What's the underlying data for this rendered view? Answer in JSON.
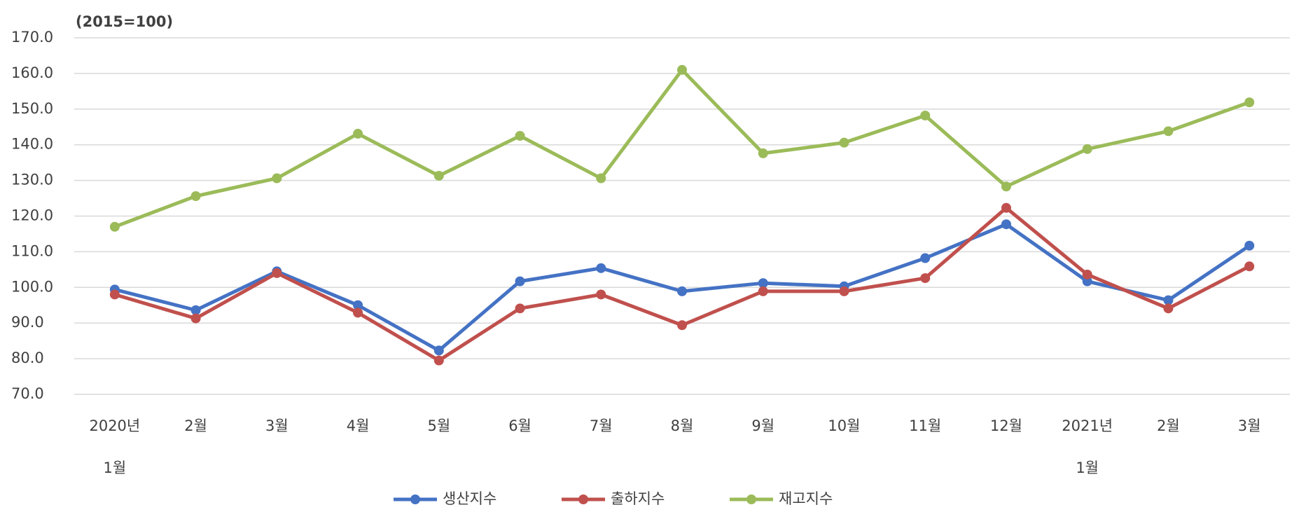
{
  "chart_data": {
    "type": "line",
    "y_label": "(2015=100)",
    "categories": [
      "2020년\n1월",
      "2월",
      "3월",
      "4월",
      "5월",
      "6월",
      "7월",
      "8월",
      "9월",
      "10월",
      "11월",
      "12월",
      "2021년\n1월",
      "2월",
      "3월"
    ],
    "series": [
      {
        "name": "생산지수",
        "color": "#4472c4",
        "values": [
          99.4,
          93.6,
          104.5,
          95.0,
          82.3,
          101.7,
          105.4,
          98.9,
          101.2,
          100.3,
          108.2,
          117.7,
          101.7,
          96.4,
          111.7
        ]
      },
      {
        "name": "출하지수",
        "color": "#c0504d",
        "values": [
          98.0,
          91.3,
          104.0,
          92.9,
          79.5,
          94.1,
          98.0,
          89.4,
          98.9,
          98.9,
          102.6,
          122.3,
          103.6,
          94.1,
          105.9
        ]
      },
      {
        "name": "재고지수",
        "color": "#9bbb59",
        "values": [
          117.0,
          125.6,
          130.6,
          143.1,
          131.3,
          142.5,
          130.6,
          161.0,
          137.6,
          140.6,
          148.2,
          128.3,
          138.8,
          143.8,
          151.9
        ]
      }
    ],
    "ylim": [
      70,
      170
    ],
    "yticks": [
      {
        "value": 70,
        "label": "70.0"
      },
      {
        "value": 80,
        "label": "80.0"
      },
      {
        "value": 90,
        "label": "90.0"
      },
      {
        "value": 100,
        "label": "100.0"
      },
      {
        "value": 110,
        "label": "110.0"
      },
      {
        "value": 120,
        "label": "120.0"
      },
      {
        "value": 130,
        "label": "130.0"
      },
      {
        "value": 140,
        "label": "140.0"
      },
      {
        "value": 150,
        "label": "150.0"
      },
      {
        "value": 160,
        "label": "160.0"
      },
      {
        "value": 170,
        "label": "170.0"
      }
    ],
    "grid": true,
    "legend": "bottom"
  }
}
